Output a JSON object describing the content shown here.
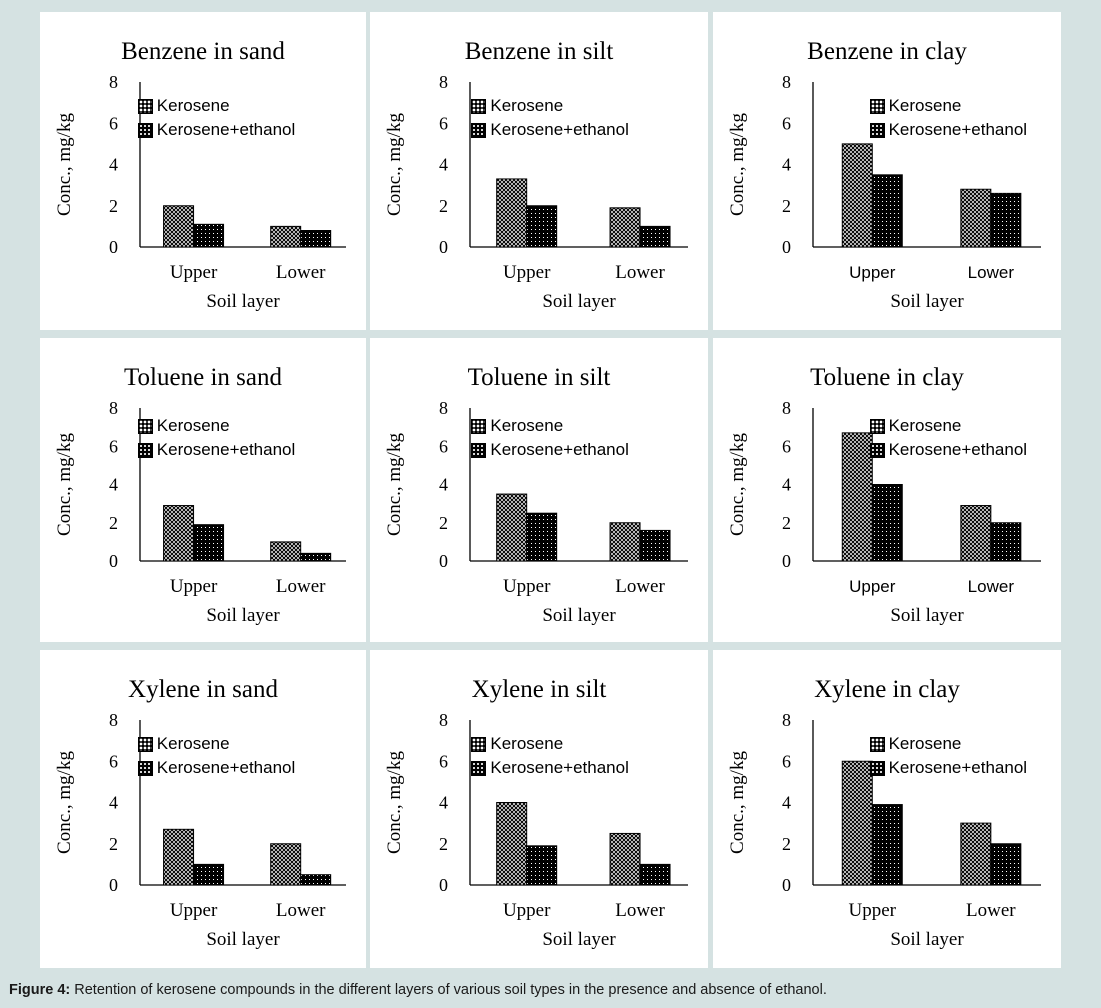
{
  "figure": {
    "caption_label": "Figure 4:",
    "caption_text": " Retention of kerosene compounds in the different layers of various soil types in the presence and absence of ethanol."
  },
  "colors": {
    "background": "#d5e2e2",
    "panel": "#ffffff",
    "bars": "#000000"
  },
  "chart_data": [
    {
      "type": "bar",
      "title": "Benzene in sand",
      "xlabel": "Soil layer",
      "ylabel": "Conc., mg/kg",
      "categories": [
        "Upper",
        "Lower"
      ],
      "ylim": [
        0,
        8
      ],
      "yticks": [
        "0",
        "2",
        "4",
        "6",
        "8"
      ],
      "series": [
        {
          "name": "Kerosene",
          "values": [
            2.0,
            1.0
          ]
        },
        {
          "name": "Kerosene+ethanol",
          "values": [
            1.1,
            0.8
          ]
        }
      ],
      "legend": "top-center",
      "grid": false
    },
    {
      "type": "bar",
      "title": "Benzene in silt",
      "xlabel": "Soil layer",
      "ylabel": "Conc., mg/kg",
      "categories": [
        "Upper",
        "Lower"
      ],
      "ylim": [
        0,
        8
      ],
      "yticks": [
        "0",
        "2",
        "4",
        "6",
        "8"
      ],
      "series": [
        {
          "name": "Kerosene",
          "values": [
            3.3,
            1.9
          ]
        },
        {
          "name": "Kerosene+ethanol",
          "values": [
            2.0,
            1.0
          ]
        }
      ],
      "legend": "top-center",
      "grid": false
    },
    {
      "type": "bar",
      "title": "Benzene in clay",
      "xlabel": "Soil layer",
      "ylabel": "Conc., mg/kg",
      "categories": [
        "Upper",
        "Lower"
      ],
      "ylim": [
        0,
        8
      ],
      "yticks": [
        "0",
        "2",
        "4",
        "6",
        "8"
      ],
      "series": [
        {
          "name": "Kerosene",
          "values": [
            5.0,
            2.8
          ]
        },
        {
          "name": "Kerosene+ethanol",
          "values": [
            3.5,
            2.6
          ]
        }
      ],
      "legend": "top-right",
      "grid": false
    },
    {
      "type": "bar",
      "title": "Toluene in sand",
      "xlabel": "Soil layer",
      "ylabel": "Conc., mg/kg",
      "categories": [
        "Upper",
        "Lower"
      ],
      "ylim": [
        0,
        8
      ],
      "yticks": [
        "0",
        "2",
        "4",
        "6",
        "8"
      ],
      "series": [
        {
          "name": "Kerosene",
          "values": [
            2.9,
            1.0
          ]
        },
        {
          "name": "Kerosene+ethanol",
          "values": [
            1.9,
            0.4
          ]
        }
      ],
      "legend": "top-center",
      "grid": false
    },
    {
      "type": "bar",
      "title": "Toluene in silt",
      "xlabel": "Soil layer",
      "ylabel": "Conc., mg/kg",
      "categories": [
        "Upper",
        "Lower"
      ],
      "ylim": [
        0,
        8
      ],
      "yticks": [
        "0",
        "2",
        "4",
        "6",
        "8"
      ],
      "series": [
        {
          "name": "Kerosene",
          "values": [
            3.5,
            2.0
          ]
        },
        {
          "name": "Kerosene+ethanol",
          "values": [
            2.5,
            1.6
          ]
        }
      ],
      "legend": "top-center",
      "grid": false
    },
    {
      "type": "bar",
      "title": "Toluene in clay",
      "xlabel": "Soil layer",
      "ylabel": "Conc., mg/kg",
      "categories": [
        "Upper",
        "Lower"
      ],
      "ylim": [
        0,
        8
      ],
      "yticks": [
        "0",
        "2",
        "4",
        "6",
        "8"
      ],
      "series": [
        {
          "name": "Kerosene",
          "values": [
            6.7,
            2.9
          ]
        },
        {
          "name": "Kerosene+ethanol",
          "values": [
            4.0,
            2.0
          ]
        }
      ],
      "legend": "top-right",
      "grid": false
    },
    {
      "type": "bar",
      "title": "Xylene in sand",
      "xlabel": "Soil layer",
      "ylabel": "Conc., mg/kg",
      "categories": [
        "Upper",
        "Lower"
      ],
      "ylim": [
        0,
        8
      ],
      "yticks": [
        "0",
        "2",
        "4",
        "6",
        "8"
      ],
      "series": [
        {
          "name": "Kerosene",
          "values": [
            2.7,
            2.0
          ]
        },
        {
          "name": "Kerosene+ethanol",
          "values": [
            1.0,
            0.5
          ]
        }
      ],
      "legend": "top-center",
      "grid": false
    },
    {
      "type": "bar",
      "title": "Xylene in silt",
      "xlabel": "Soil layer",
      "ylabel": "Conc., mg/kg",
      "categories": [
        "Upper",
        "Lower"
      ],
      "ylim": [
        0,
        8
      ],
      "yticks": [
        "0",
        "2",
        "4",
        "6",
        "8"
      ],
      "series": [
        {
          "name": "Kerosene",
          "values": [
            4.0,
            2.5
          ]
        },
        {
          "name": "Kerosene+ethanol",
          "values": [
            1.9,
            1.0
          ]
        }
      ],
      "legend": "top-center",
      "grid": false
    },
    {
      "type": "bar",
      "title": "Xylene in clay",
      "xlabel": "Soil layer",
      "ylabel": "Conc., mg/kg",
      "categories": [
        "Upper",
        "Lower"
      ],
      "ylim": [
        0,
        8
      ],
      "yticks": [
        "0",
        "2",
        "4",
        "6",
        "8"
      ],
      "series": [
        {
          "name": "Kerosene",
          "values": [
            6.0,
            3.0
          ]
        },
        {
          "name": "Kerosene+ethanol",
          "values": [
            3.9,
            2.0
          ]
        }
      ],
      "legend": "top-right",
      "grid": false
    }
  ]
}
